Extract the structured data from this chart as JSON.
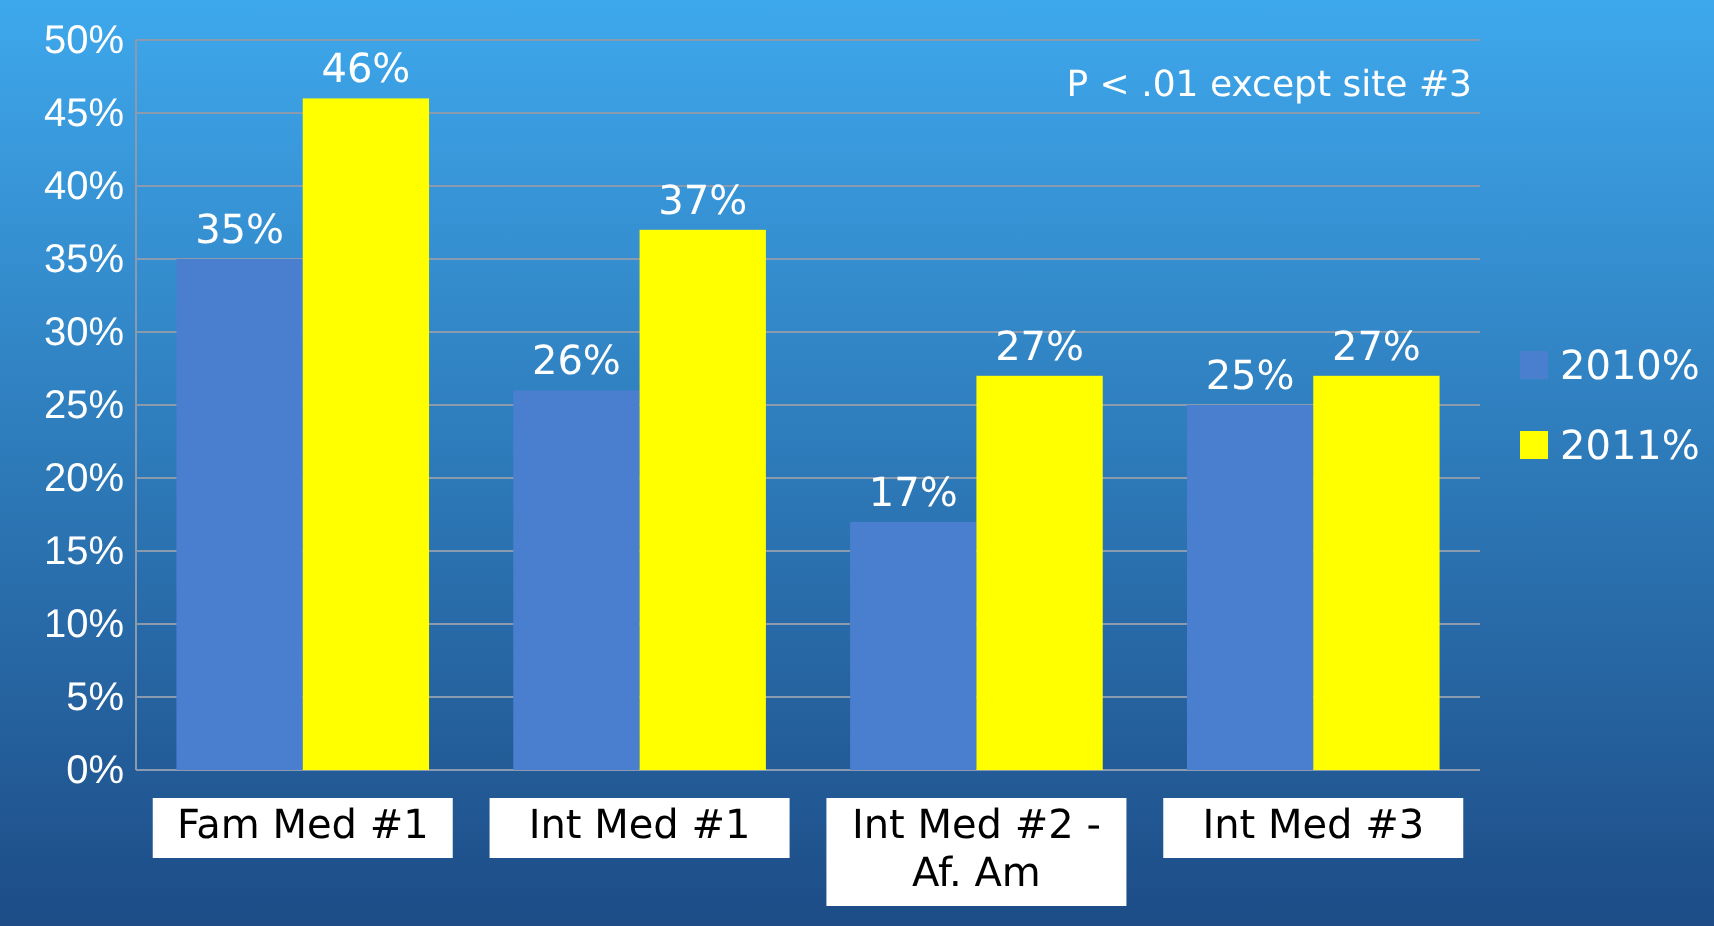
{
  "chart_data": {
    "type": "bar",
    "categories": [
      "Fam Med #1",
      "Int Med #1",
      "Int Med #2 - Af. Am",
      "Int Med #3"
    ],
    "series": [
      {
        "name": "2010%",
        "color": "#4a7fd0",
        "values": [
          35,
          26,
          17,
          25
        ],
        "value_labels": [
          "35%",
          "26%",
          "17%",
          "25%"
        ]
      },
      {
        "name": "2011%",
        "color": "#ffff00",
        "values": [
          46,
          37,
          27,
          27
        ],
        "value_labels": [
          "46%",
          "37%",
          "27%",
          "27%"
        ]
      }
    ],
    "ylim": [
      0,
      50
    ],
    "yticks": [
      {
        "value": 0,
        "label": "0%"
      },
      {
        "value": 5,
        "label": "5%"
      },
      {
        "value": 10,
        "label": "10%"
      },
      {
        "value": 15,
        "label": "15%"
      },
      {
        "value": 20,
        "label": "20%"
      },
      {
        "value": 25,
        "label": "25%"
      },
      {
        "value": 30,
        "label": "30%"
      },
      {
        "value": 35,
        "label": "35%"
      },
      {
        "value": 40,
        "label": "40%"
      },
      {
        "value": 45,
        "label": "45%"
      },
      {
        "value": 50,
        "label": "50%"
      }
    ],
    "grid": "y",
    "legend": "right",
    "annotations": [
      "P < .01 except site #3"
    ]
  }
}
